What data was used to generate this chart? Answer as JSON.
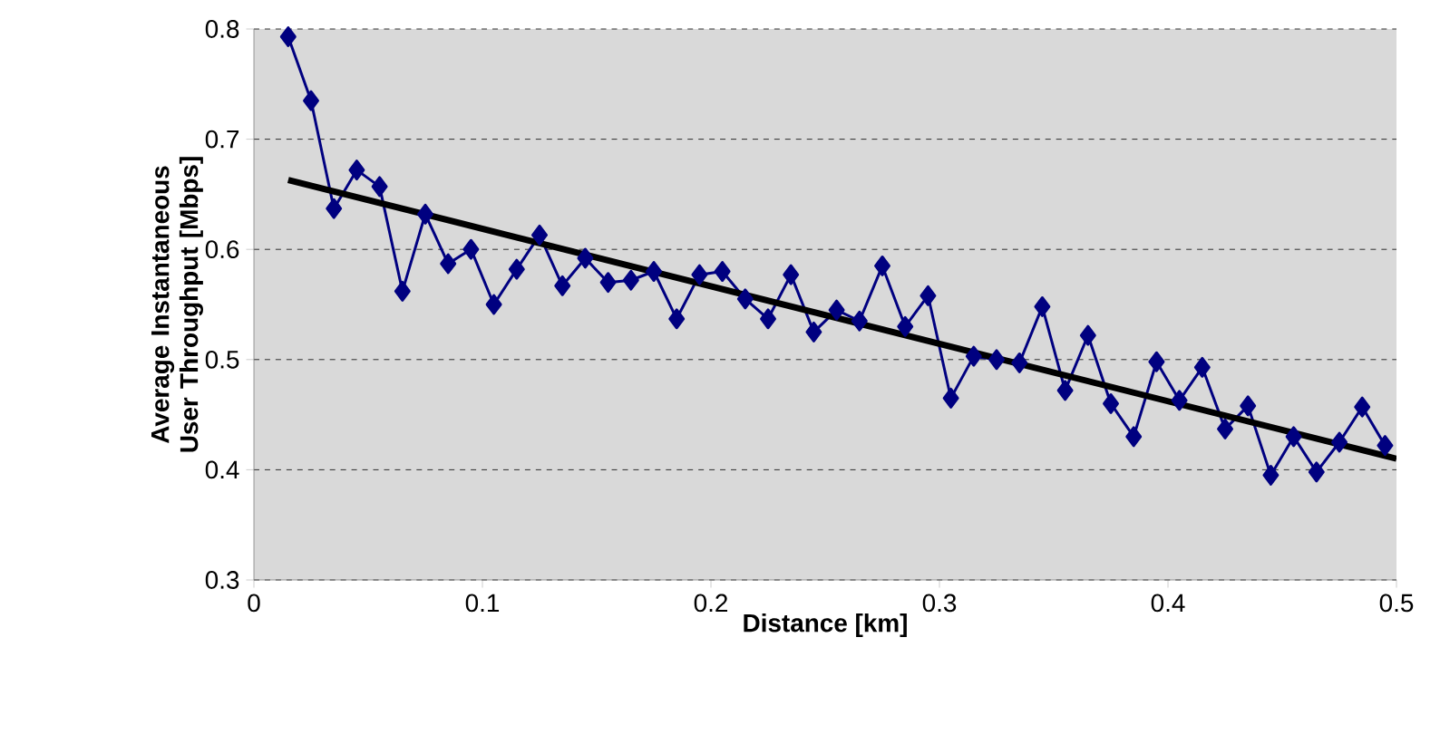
{
  "chart_data": {
    "type": "line",
    "xlabel": "Distance [km]",
    "ylabel": "Average Instantaneous User Throughput [Mbps]",
    "xlim": [
      0,
      0.5
    ],
    "ylim": [
      0.3,
      0.8
    ],
    "xticks": [
      0,
      0.1,
      0.2,
      0.3,
      0.4,
      0.5
    ],
    "yticks": [
      0.3,
      0.4,
      0.5,
      0.6,
      0.7,
      0.8
    ],
    "grid": "y",
    "marker": "diamond",
    "line_style": "solid",
    "series": [
      {
        "color": "#000080",
        "x": [
          0.015,
          0.025,
          0.035,
          0.045,
          0.055,
          0.065,
          0.075,
          0.085,
          0.095,
          0.105,
          0.115,
          0.125,
          0.135,
          0.145,
          0.155,
          0.165,
          0.175,
          0.185,
          0.195,
          0.205,
          0.215,
          0.225,
          0.235,
          0.245,
          0.255,
          0.265,
          0.275,
          0.285,
          0.295,
          0.305,
          0.315,
          0.325,
          0.335,
          0.345,
          0.355,
          0.365,
          0.375,
          0.385,
          0.395,
          0.405,
          0.415,
          0.425,
          0.435,
          0.445,
          0.455,
          0.465,
          0.475,
          0.485,
          0.495
        ],
        "values": [
          0.793,
          0.735,
          0.637,
          0.672,
          0.657,
          0.562,
          0.632,
          0.587,
          0.6,
          0.55,
          0.582,
          0.613,
          0.567,
          0.592,
          0.57,
          0.572,
          0.58,
          0.537,
          0.577,
          0.58,
          0.555,
          0.537,
          0.577,
          0.525,
          0.545,
          0.535,
          0.585,
          0.53,
          0.558,
          0.465,
          0.503,
          0.5,
          0.497,
          0.548,
          0.472,
          0.522,
          0.46,
          0.43,
          0.498,
          0.463,
          0.493,
          0.437,
          0.458,
          0.395,
          0.43,
          0.398,
          0.425,
          0.457,
          0.422
        ]
      },
      {
        "color": "#000000",
        "marker": "none",
        "x": [
          0.015,
          0.5
        ],
        "values": [
          0.663,
          0.41
        ]
      }
    ]
  }
}
